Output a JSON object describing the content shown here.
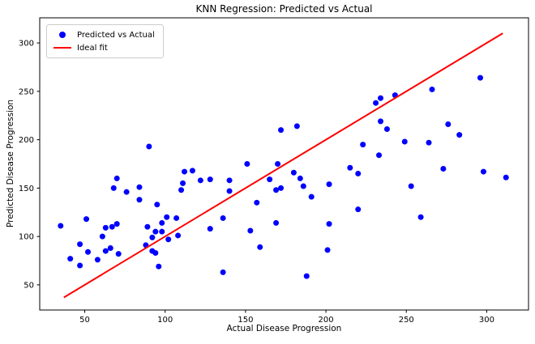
{
  "figure": {
    "title": "KNN Regression: Predicted vs Actual"
  },
  "chart_data": {
    "type": "scatter",
    "title": "KNN Regression: Predicted vs Actual",
    "xlabel": "Actual Disease Progression",
    "ylabel": "Predicted Disease Progression",
    "xlim": [
      22,
      326
    ],
    "ylim": [
      24,
      326
    ],
    "xticks": [
      50,
      100,
      150,
      200,
      250,
      300
    ],
    "yticks": [
      50,
      100,
      150,
      200,
      250,
      300
    ],
    "grid": false,
    "legend": {
      "position": "upper left",
      "entries": [
        {
          "label": "Predicted vs Actual",
          "marker": "dot",
          "color": "#0000ff"
        },
        {
          "label": "Ideal fit",
          "marker": "line",
          "color": "#ff0000"
        }
      ]
    },
    "series": [
      {
        "name": "Predicted vs Actual",
        "type": "scatter",
        "color": "#0000ff",
        "marker_radius": 3.5,
        "points": [
          [
            70,
            160
          ],
          [
            68,
            150
          ],
          [
            76,
            146
          ],
          [
            84,
            151
          ],
          [
            84,
            138
          ],
          [
            95,
            133
          ],
          [
            112,
            167
          ],
          [
            117,
            168
          ],
          [
            111,
            155
          ],
          [
            110,
            148
          ],
          [
            122,
            158
          ],
          [
            128,
            159
          ],
          [
            35,
            111
          ],
          [
            51,
            118
          ],
          [
            47,
            92
          ],
          [
            52,
            84
          ],
          [
            41,
            77
          ],
          [
            47,
            70
          ],
          [
            58,
            76
          ],
          [
            63,
            109
          ],
          [
            67,
            110
          ],
          [
            70,
            113
          ],
          [
            61,
            100
          ],
          [
            63,
            85
          ],
          [
            66,
            88
          ],
          [
            71,
            82
          ],
          [
            89,
            110
          ],
          [
            94,
            105
          ],
          [
            98,
            105
          ],
          [
            92,
            99
          ],
          [
            102,
            97
          ],
          [
            108,
            101
          ],
          [
            98,
            114
          ],
          [
            101,
            120
          ],
          [
            107,
            119
          ],
          [
            128,
            108
          ],
          [
            88,
            91
          ],
          [
            92,
            85
          ],
          [
            94,
            83
          ],
          [
            96,
            69
          ],
          [
            90,
            193
          ],
          [
            140,
            158
          ],
          [
            140,
            147
          ],
          [
            151,
            175
          ],
          [
            157,
            135
          ],
          [
            165,
            159
          ],
          [
            170,
            175
          ],
          [
            169,
            148
          ],
          [
            172,
            150
          ],
          [
            180,
            166
          ],
          [
            184,
            160
          ],
          [
            186,
            152
          ],
          [
            191,
            141
          ],
          [
            202,
            154
          ],
          [
            215,
            171
          ],
          [
            220,
            165
          ],
          [
            220,
            128
          ],
          [
            136,
            119
          ],
          [
            169,
            114
          ],
          [
            153,
            106
          ],
          [
            202,
            113
          ],
          [
            159,
            89
          ],
          [
            201,
            86
          ],
          [
            136,
            63
          ],
          [
            188,
            59
          ],
          [
            172,
            210
          ],
          [
            182,
            214
          ],
          [
            223,
            195
          ],
          [
            233,
            184
          ],
          [
            231,
            238
          ],
          [
            234,
            243
          ],
          [
            243,
            246
          ],
          [
            266,
            252
          ],
          [
            296,
            264
          ],
          [
            234,
            219
          ],
          [
            238,
            211
          ],
          [
            249,
            198
          ],
          [
            264,
            197
          ],
          [
            276,
            216
          ],
          [
            283,
            205
          ],
          [
            273,
            170
          ],
          [
            298,
            167
          ],
          [
            312,
            161
          ],
          [
            253,
            152
          ],
          [
            259,
            120
          ]
        ]
      },
      {
        "name": "Ideal fit",
        "type": "line",
        "color": "#ff0000",
        "line_width": 2,
        "points": [
          [
            37,
            37
          ],
          [
            310,
            310
          ]
        ]
      }
    ]
  },
  "colors": {
    "point": "#0000ff",
    "line": "#ff0000",
    "axis": "#000000",
    "legend_border": "#cccccc",
    "background": "#ffffff"
  }
}
